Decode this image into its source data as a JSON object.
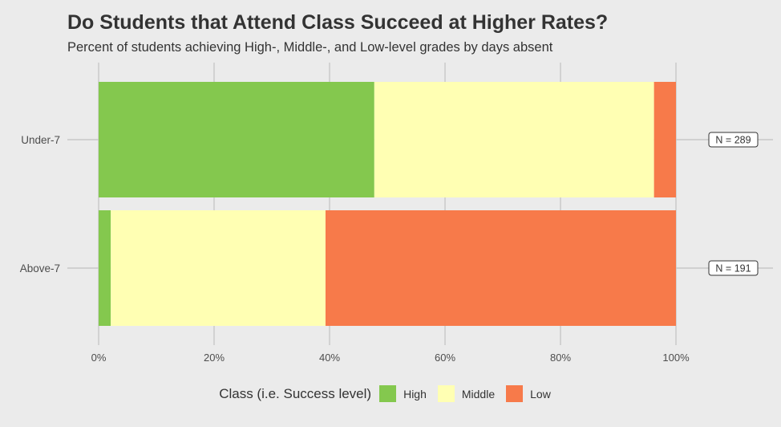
{
  "chart_data": {
    "type": "bar",
    "orientation": "horizontal",
    "stacked": true,
    "title": "Do Students that Attend Class Succeed at Higher Rates?",
    "subtitle": "Percent of students achieving High-, Middle-, and Low-level grades by days absent",
    "categories": [
      "Under-7",
      "Above-7"
    ],
    "series": [
      {
        "name": "High",
        "color": "#84c84e",
        "values": [
          47.75,
          2.1
        ]
      },
      {
        "name": "Middle",
        "color": "#ffffb3",
        "values": [
          48.45,
          37.2
        ]
      },
      {
        "name": "Low",
        "color": "#f77a4a",
        "values": [
          3.8,
          60.7
        ]
      }
    ],
    "annotations": [
      "N = 289",
      "N = 191"
    ],
    "xlim": [
      0,
      100
    ],
    "xticks": [
      0,
      20,
      40,
      60,
      80,
      100
    ],
    "xtick_labels": [
      "0%",
      "20%",
      "40%",
      "60%",
      "80%",
      "100%"
    ],
    "grid": true,
    "legend": {
      "title": "Class (i.e. Success level)",
      "position": "bottom"
    }
  }
}
